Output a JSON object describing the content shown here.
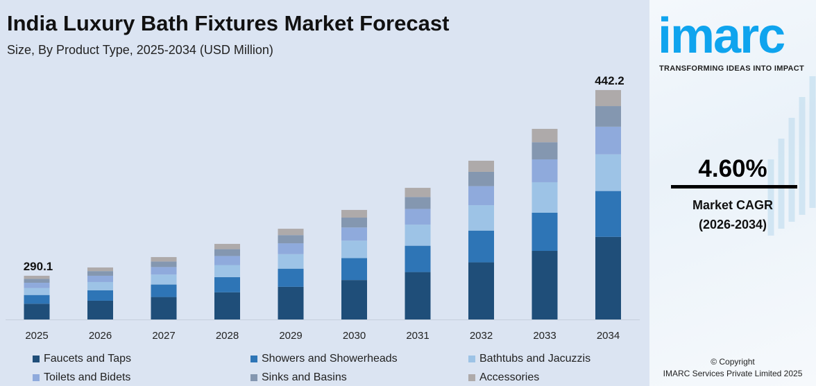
{
  "title": "India Luxury Bath Fixtures Market Forecast",
  "subtitle": "Size, By Product Type, 2025-2034 (USD Million)",
  "chart_data": {
    "type": "bar",
    "stacked": true,
    "title": "India Luxury Bath Fixtures Market Forecast",
    "subtitle": "Size, By Product Type, 2025-2034 (USD Million)",
    "categories": [
      "2025",
      "2026",
      "2027",
      "2028",
      "2029",
      "2030",
      "2031",
      "2032",
      "2033",
      "2034"
    ],
    "series": [
      {
        "name": "Faucets and Taps",
        "color": "#1f4e79",
        "values": [
          104.4,
          106.9,
          109.9,
          113.8,
          118.3,
          123.8,
          130.4,
          138.3,
          147.7,
          159.2
        ]
      },
      {
        "name": "Showers and Showerheads",
        "color": "#2e75b6",
        "values": [
          58.0,
          59.4,
          61.1,
          63.2,
          65.7,
          68.8,
          72.4,
          76.9,
          82.1,
          88.4
        ]
      },
      {
        "name": "Bathtubs and Jacuzzis",
        "color": "#9dc3e6",
        "values": [
          46.4,
          47.5,
          48.9,
          50.6,
          52.6,
          55.0,
          57.9,
          61.5,
          65.7,
          70.8
        ]
      },
      {
        "name": "Toilets and Bidets",
        "color": "#8faadc",
        "values": [
          34.8,
          35.6,
          36.6,
          37.9,
          39.4,
          41.3,
          43.5,
          46.1,
          49.2,
          53.1
        ]
      },
      {
        "name": "Sinks and Basins",
        "color": "#8497b0",
        "values": [
          26.1,
          26.7,
          27.5,
          28.5,
          29.6,
          31.0,
          32.6,
          34.6,
          36.9,
          39.8
        ]
      },
      {
        "name": "Accessories",
        "color": "#aeaaaa",
        "values": [
          20.4,
          20.8,
          21.4,
          22.2,
          23.0,
          24.1,
          25.3,
          26.9,
          28.8,
          30.9
        ]
      }
    ],
    "data_labels": {
      "2025": "290.1",
      "2034": "442.2"
    },
    "legend": "bottom",
    "grid": false,
    "yaxis_visible": false
  },
  "sidebar": {
    "logo": "imarc",
    "tagline": "TRANSFORMING IDEAS INTO IMPACT",
    "cagr_value": "4.60%",
    "cagr_label": "Market CAGR",
    "cagr_period": "(2026-2034)",
    "copyright": "© Copyright",
    "company": "IMARC Services Private Limited 2025",
    "brand_color": "#0fa4ee"
  }
}
